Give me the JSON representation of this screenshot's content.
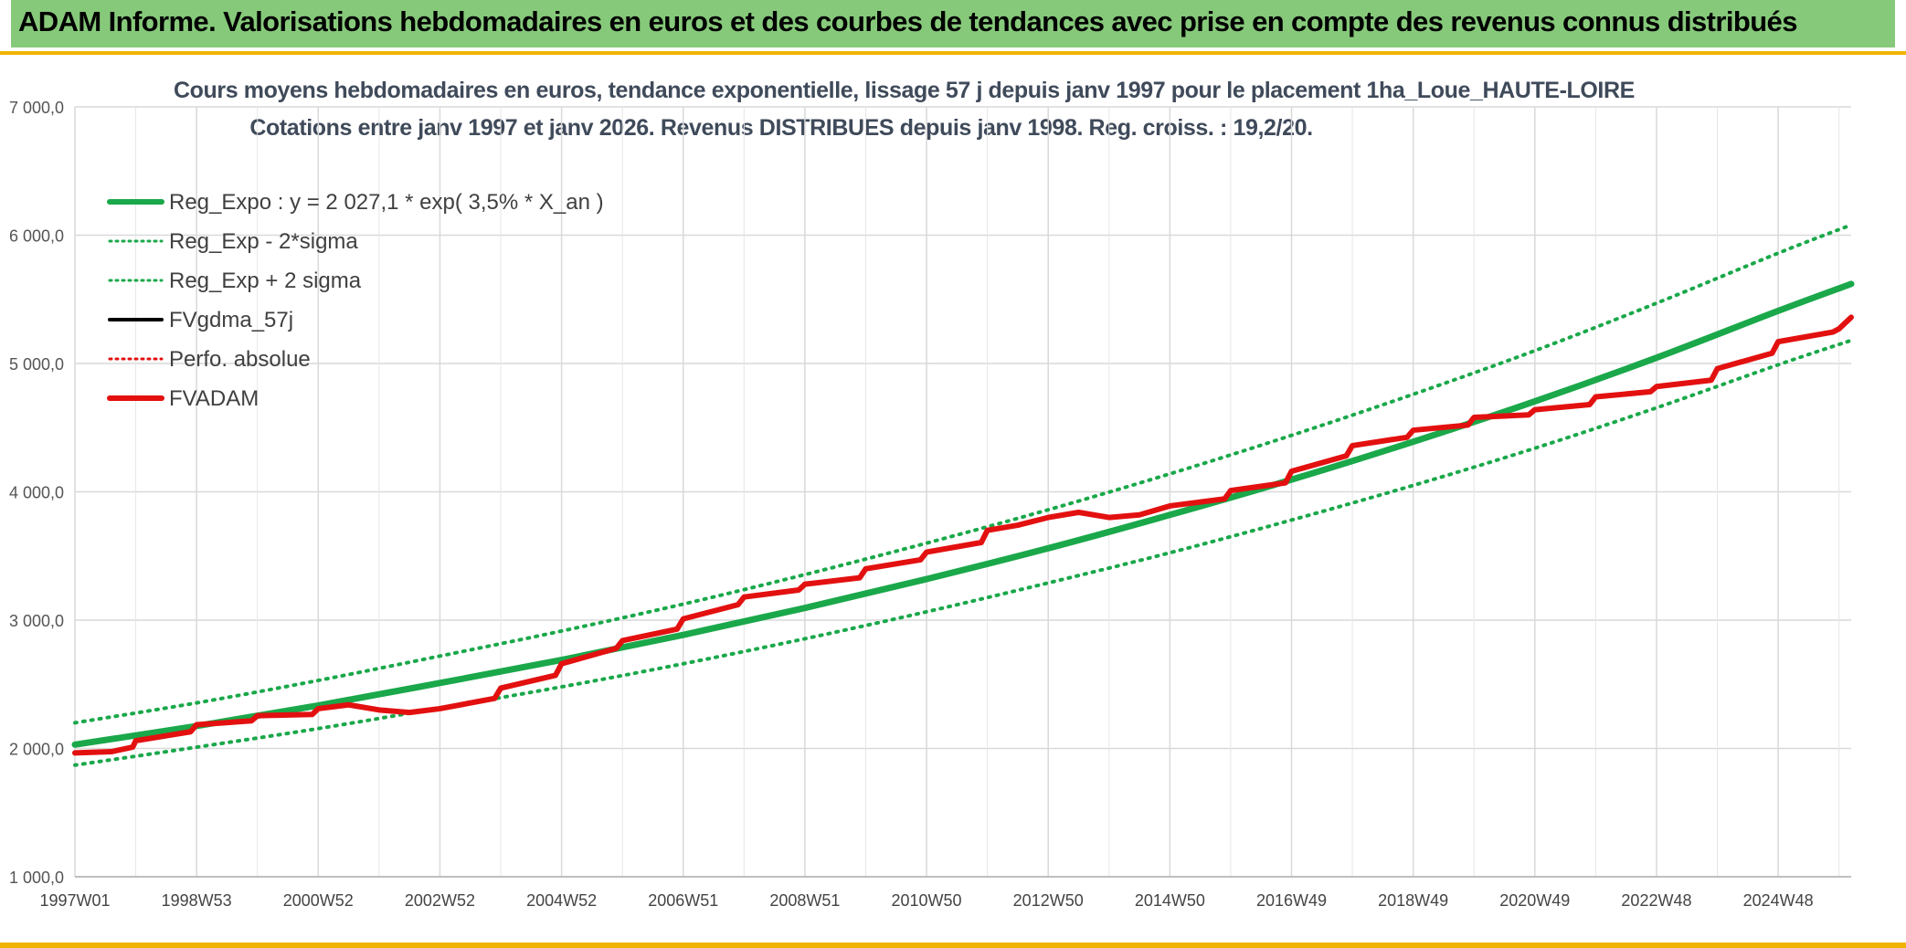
{
  "header": {
    "title": "ADAM Informe. Valorisations hebdomadaires en euros et des courbes de tendances avec prise en compte des revenus connus distribués"
  },
  "colors": {
    "banner": "#86c97a",
    "accent": "#f0b400",
    "trend": "#1aa84a",
    "adam": "#e31010",
    "grid": "#d9d9d9"
  },
  "chart_data": {
    "type": "line",
    "title_line1": "Cours moyens hebdomadaires en euros, tendance exponentielle, lissage 57 j depuis janv 1997 pour le placement 1ha_Loue_HAUTE-LOIRE",
    "title_line2": "Cotations entre janv 1997 et janv 2026. Revenus DISTRIBUES depuis janv 1998. Reg. croiss. : 19,2/20.",
    "ylim": [
      1000,
      7000
    ],
    "xlim": [
      1997.0,
      2026.2
    ],
    "y_ticks": [
      "1 000,0",
      "2 000,0",
      "3 000,0",
      "4 000,0",
      "5 000,0",
      "6 000,0",
      "7 000,0"
    ],
    "y_tick_values": [
      1000,
      2000,
      3000,
      4000,
      5000,
      6000,
      7000
    ],
    "x_ticks": [
      "1997W01",
      "1998W53",
      "2000W52",
      "2002W52",
      "2004W52",
      "2006W51",
      "2008W51",
      "2010W50",
      "2012W50",
      "2014W50",
      "2016W49",
      "2018W49",
      "2020W49",
      "2022W48",
      "2024W48"
    ],
    "x_tick_values": [
      1997.0,
      1999.0,
      2001.0,
      2003.0,
      2005.0,
      2007.0,
      2009.0,
      2011.0,
      2013.0,
      2015.0,
      2017.0,
      2019.0,
      2021.0,
      2023.0,
      2025.0
    ],
    "legend_position": "top-left",
    "legend": [
      {
        "label": "Reg_Expo : y = 2 027,1 * exp( 3,5% *  X_an )",
        "color": "#1aa84a",
        "style": "solid-thick"
      },
      {
        "label": "Reg_Exp - 2*sigma",
        "color": "#1aa84a",
        "style": "dotted"
      },
      {
        "label": "Reg_Exp + 2 sigma",
        "color": "#1aa84a",
        "style": "dotted"
      },
      {
        "label": "FVgdma_57j",
        "color": "#000000",
        "style": "solid"
      },
      {
        "label": "Perfo. absolue",
        "color": "#e31010",
        "style": "dotted"
      },
      {
        "label": "FVADAM",
        "color": "#e31010",
        "style": "solid-thick"
      }
    ],
    "series": [
      {
        "name": "Reg_Expo",
        "x": [
          1997.0,
          1999.0,
          2001.0,
          2003.0,
          2005.0,
          2007.0,
          2009.0,
          2011.0,
          2013.0,
          2015.0,
          2017.0,
          2019.0,
          2021.0,
          2023.0,
          2025.0,
          2026.2
        ],
        "values": [
          2030,
          2175,
          2335,
          2510,
          2690,
          2885,
          3095,
          3320,
          3560,
          3820,
          4095,
          4390,
          4705,
          5045,
          5410,
          5620
        ]
      },
      {
        "name": "Reg_Exp - 2*sigma",
        "x": [
          1997.0,
          1999.0,
          2001.0,
          2003.0,
          2005.0,
          2007.0,
          2009.0,
          2011.0,
          2013.0,
          2015.0,
          2017.0,
          2019.0,
          2021.0,
          2023.0,
          2025.0,
          2026.2
        ],
        "values": [
          1870,
          2010,
          2155,
          2315,
          2480,
          2660,
          2855,
          3065,
          3290,
          3525,
          3780,
          4050,
          4340,
          4655,
          4990,
          5180
        ]
      },
      {
        "name": "Reg_Exp + 2 sigma",
        "x": [
          1997.0,
          1999.0,
          2001.0,
          2003.0,
          2005.0,
          2007.0,
          2009.0,
          2011.0,
          2013.0,
          2015.0,
          2017.0,
          2019.0,
          2021.0,
          2023.0,
          2025.0,
          2026.2
        ],
        "values": [
          2200,
          2355,
          2530,
          2720,
          2915,
          3125,
          3355,
          3600,
          3860,
          4140,
          4440,
          4760,
          5100,
          5470,
          5860,
          6080
        ]
      },
      {
        "name": "FVADAM",
        "x": [
          1997.0,
          1997.6,
          1997.95,
          1998.0,
          1998.9,
          1999.0,
          1999.9,
          2000.0,
          2000.9,
          2001.0,
          2001.5,
          2002.0,
          2002.5,
          2003.0,
          2003.9,
          2004.0,
          2004.9,
          2005.0,
          2005.9,
          2006.0,
          2006.9,
          2007.0,
          2007.9,
          2008.0,
          2008.9,
          2009.0,
          2009.9,
          2010.0,
          2010.9,
          2011.0,
          2011.9,
          2012.0,
          2012.5,
          2013.0,
          2013.5,
          2014.0,
          2014.5,
          2015.0,
          2015.9,
          2016.0,
          2016.9,
          2017.0,
          2017.9,
          2018.0,
          2018.9,
          2019.0,
          2019.9,
          2020.0,
          2020.9,
          2021.0,
          2021.9,
          2022.0,
          2022.9,
          2023.0,
          2023.9,
          2024.0,
          2024.9,
          2025.0,
          2025.9,
          2026.0,
          2026.2
        ],
        "values": [
          1965,
          1975,
          2010,
          2060,
          2130,
          2185,
          2215,
          2255,
          2265,
          2310,
          2340,
          2300,
          2280,
          2310,
          2390,
          2470,
          2570,
          2660,
          2780,
          2840,
          2930,
          3010,
          3120,
          3180,
          3235,
          3280,
          3330,
          3400,
          3470,
          3530,
          3605,
          3700,
          3740,
          3800,
          3840,
          3800,
          3820,
          3890,
          3945,
          4010,
          4070,
          4160,
          4280,
          4360,
          4425,
          4480,
          4520,
          4580,
          4600,
          4640,
          4680,
          4740,
          4780,
          4820,
          4870,
          4960,
          5080,
          5170,
          5245,
          5270,
          5360
        ]
      }
    ]
  }
}
